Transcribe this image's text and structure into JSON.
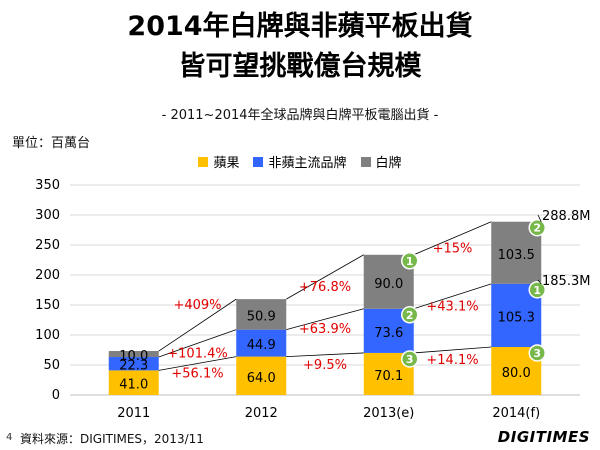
{
  "header": {
    "title_line1": "2014年白牌與非蘋平板出貨",
    "title_line2": "皆可望挑戰億台規模",
    "subtitle": "- 2011~2014年全球品牌與白牌平板電腦出貨 -",
    "unit": "單位：百萬台"
  },
  "footer": {
    "page": "4",
    "source": "資料來源：DIGITIMES，2013/11",
    "logo": "DIGITIMES"
  },
  "chart_data": {
    "type": "bar",
    "stacked": true,
    "categories": [
      "2011",
      "2012",
      "2013(e)",
      "2014(f)"
    ],
    "series": [
      {
        "name": "蘋果",
        "color": "#FFC000",
        "values": [
          41.0,
          64.0,
          70.1,
          80.0
        ],
        "labels": [
          "41.0",
          "64.0",
          "70.1",
          "80.0"
        ]
      },
      {
        "name": "非蘋主流品牌",
        "color": "#3366FF",
        "values": [
          22.3,
          44.9,
          73.6,
          105.3
        ],
        "labels": [
          "22.3",
          "44.9",
          "73.6",
          "105.3"
        ]
      },
      {
        "name": "白牌",
        "color": "#808080",
        "values": [
          10.0,
          50.9,
          90.0,
          103.5
        ],
        "labels": [
          "10.0",
          "50.9",
          "90.0",
          "103.5"
        ]
      }
    ],
    "yticks": [
      0,
      50,
      100,
      150,
      200,
      250,
      300,
      350
    ],
    "ylim": [
      0,
      350
    ],
    "growth_labels": {
      "apple": [
        "+56.1%",
        "+9.5%",
        "+14.1%"
      ],
      "nonapple": [
        "+101.4%",
        "+63.9%",
        "+43.1%"
      ],
      "whitebox": [
        "+409%",
        "+76.8%",
        "+15%"
      ]
    },
    "rank_badges": [
      {
        "category": "2013(e)",
        "series": "白牌",
        "rank": "1"
      },
      {
        "category": "2013(e)",
        "series": "非蘋主流品牌",
        "rank": "2"
      },
      {
        "category": "2013(e)",
        "series": "蘋果",
        "rank": "3"
      },
      {
        "category": "2014(f)",
        "series": "白牌",
        "rank": "2"
      },
      {
        "category": "2014(f)",
        "series": "非蘋主流品牌",
        "rank": "1"
      },
      {
        "category": "2014(f)",
        "series": "蘋果",
        "rank": "3"
      }
    ],
    "callouts": [
      "288.8M",
      "185.3M"
    ],
    "growth_color": "#E00000",
    "badge_color": "#77B84A"
  }
}
